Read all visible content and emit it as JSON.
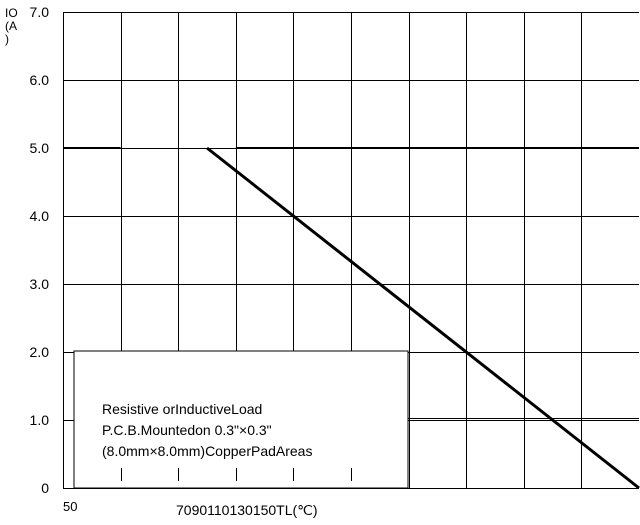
{
  "chart_data": {
    "type": "line",
    "ylabel_lines": [
      "IO",
      "(A",
      ")"
    ],
    "y_ticks": [
      {
        "value": 7.0,
        "label": "7.0"
      },
      {
        "value": 6.0,
        "label": "6.0"
      },
      {
        "value": 5.0,
        "label": "5.0"
      },
      {
        "value": 4.0,
        "label": "4.0"
      },
      {
        "value": 3.0,
        "label": "3.0"
      },
      {
        "value": 2.0,
        "label": "2.0"
      },
      {
        "value": 1.0,
        "label": "1.0"
      },
      {
        "value": 0,
        "label": "0"
      }
    ],
    "ylim": [
      0,
      7
    ],
    "x_tick_left": "50",
    "x_tick_group": "7090110130150TL(℃)",
    "x_gridlines": 10,
    "annotation_lines": [
      "Resistive orInductiveLoad",
      "P.C.B.Mountedon 0.3\"×0.3\"",
      "(8.0mm×8.0mm)CopperPadAreas"
    ],
    "series": [
      {
        "values": [
          [
            0,
            5.0
          ],
          [
            1,
            5.0
          ],
          [
            2.5,
            5.0
          ],
          [
            10,
            0
          ]
        ]
      }
    ],
    "grid": true
  }
}
